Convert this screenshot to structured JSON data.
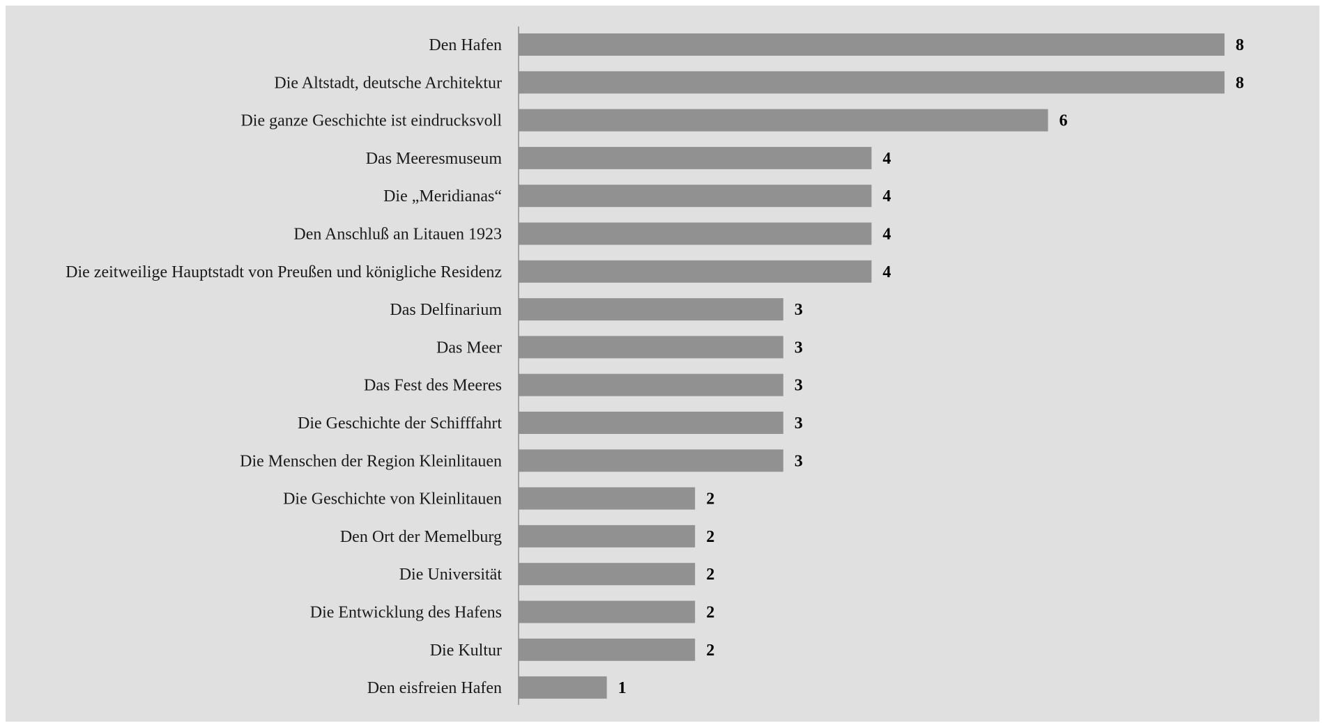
{
  "colors": {
    "background": "#e0e0e0",
    "bar": "#919191",
    "axis": "#8c8c8c",
    "label_text": "#1a1a1a",
    "value_text": "#000000"
  },
  "chart_data": {
    "type": "bar",
    "orientation": "horizontal",
    "title": "",
    "xlabel": "",
    "ylabel": "",
    "grid": false,
    "legend": "none",
    "data_labels": true,
    "xlim": [
      0,
      8
    ],
    "categories": [
      "Den Hafen",
      "Die Altstadt, deutsche Architektur",
      "Die ganze Geschichte ist eindrucksvoll",
      "Das Meeresmuseum",
      "Die „Meridianas“",
      "Den Anschluß an Litauen 1923",
      "Die zeitweilige Hauptstadt von Preußen und königliche Residenz",
      "Das Delfinarium",
      "Das Meer",
      "Das Fest des Meeres",
      "Die Geschichte der Schifffahrt",
      "Die Menschen der Region Kleinlitauen",
      "Die Geschichte von Kleinlitauen",
      "Den Ort der Memelburg",
      "Die Universität",
      "Die Entwicklung des Hafens",
      "Die Kultur",
      "Den eisfreien Hafen"
    ],
    "values": [
      8,
      8,
      6,
      4,
      4,
      4,
      4,
      3,
      3,
      3,
      3,
      3,
      2,
      2,
      2,
      2,
      2,
      1
    ]
  }
}
